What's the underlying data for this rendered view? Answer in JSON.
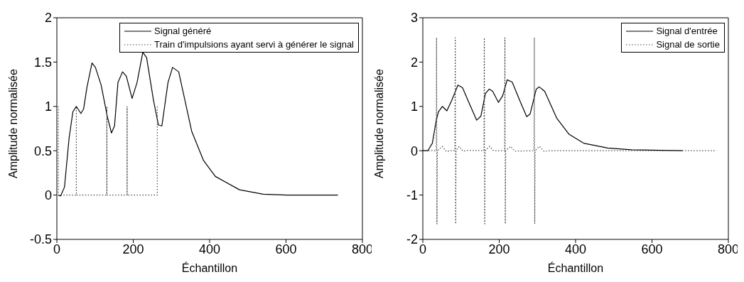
{
  "chart_data": [
    {
      "type": "line",
      "xlabel": "Échantillon",
      "ylabel": "Amplitude normalisée",
      "xlim": [
        0,
        800
      ],
      "xticks": [
        0,
        200,
        400,
        600,
        800
      ],
      "ylim": [
        -0.5,
        2
      ],
      "yticks": [
        -0.5,
        0,
        0.5,
        1,
        1.5,
        2
      ],
      "grid": false,
      "legend": "top right",
      "marker": "none",
      "series": [
        {
          "name": "Signal généré",
          "color": "#000000",
          "line_style": "solid",
          "x": [
            4,
            10,
            20,
            32,
            42,
            51,
            54,
            63,
            70,
            79,
            92,
            101,
            116,
            132,
            143,
            151,
            160,
            172,
            182,
            197,
            210,
            225,
            235,
            253,
            266,
            275,
            291,
            303,
            319,
            353,
            384,
            415,
            478,
            540,
            602,
            736
          ],
          "values": [
            0,
            -0.01,
            0.09,
            0.64,
            0.94,
            1.0,
            0.98,
            0.92,
            0.97,
            1.22,
            1.49,
            1.44,
            1.24,
            0.89,
            0.7,
            0.78,
            1.27,
            1.39,
            1.34,
            1.09,
            1.27,
            1.61,
            1.55,
            1.07,
            0.79,
            0.78,
            1.27,
            1.44,
            1.39,
            0.72,
            0.39,
            0.21,
            0.06,
            0.01,
            0,
            0
          ]
        },
        {
          "name": "Train d'impulsions ayant servi à générer le signal",
          "color": "#444444",
          "line_style": "dotted",
          "x": [
            4,
            4,
            51,
            51,
            51,
            131,
            131,
            131,
            184,
            184,
            184,
            263,
            263
          ],
          "values": [
            1,
            0,
            0,
            1,
            0,
            0,
            1,
            0,
            0,
            1,
            0,
            0,
            1
          ]
        }
      ]
    },
    {
      "type": "line",
      "xlabel": "Échantillon",
      "ylabel": "Amplitude normalisée",
      "xlim": [
        0,
        800
      ],
      "xticks": [
        0,
        200,
        400,
        600,
        800
      ],
      "ylim": [
        -2,
        3
      ],
      "yticks": [
        -2,
        -1,
        0,
        1,
        2,
        3
      ],
      "grid": false,
      "legend": "top right",
      "marker": "none",
      "series": [
        {
          "name": "Signal d'entrée",
          "color": "#000000",
          "line_style": "solid",
          "x": [
            0,
            13,
            25,
            35,
            41,
            51,
            63,
            76,
            92,
            104,
            123,
            141,
            152,
            164,
            174,
            183,
            198,
            209,
            221,
            234,
            256,
            272,
            281,
            297,
            305,
            319,
            351,
            383,
            421,
            484,
            547,
            680
          ],
          "values": [
            0,
            0,
            0.17,
            0.68,
            0.88,
            1.0,
            0.9,
            1.14,
            1.48,
            1.42,
            1.04,
            0.69,
            0.78,
            1.29,
            1.39,
            1.34,
            1.09,
            1.24,
            1.6,
            1.55,
            1.09,
            0.77,
            0.83,
            1.39,
            1.44,
            1.34,
            0.73,
            0.37,
            0.17,
            0.06,
            0.02,
            0
          ]
        },
        {
          "name": "Signal de sortie",
          "color": "#444444",
          "line_style": "dotted",
          "x": [
            0,
            35,
            36,
            37,
            38,
            51,
            62,
            70,
            84,
            85,
            86,
            87,
            95,
            105,
            120,
            160,
            161,
            162,
            163,
            175,
            185,
            214,
            215,
            216,
            217,
            230,
            240,
            291,
            292,
            293,
            294,
            305,
            318,
            330,
            769
          ],
          "values": [
            0,
            0,
            2.55,
            -1.65,
            0,
            0.1,
            -0.02,
            0,
            0,
            2.55,
            -1.65,
            0,
            0.1,
            -0.01,
            0.01,
            0,
            2.55,
            -1.65,
            0,
            0.1,
            0,
            0,
            2.55,
            -1.65,
            0,
            0.1,
            -0.01,
            0,
            2.55,
            -1.65,
            0,
            0.1,
            -0.02,
            0,
            0
          ]
        }
      ]
    }
  ]
}
